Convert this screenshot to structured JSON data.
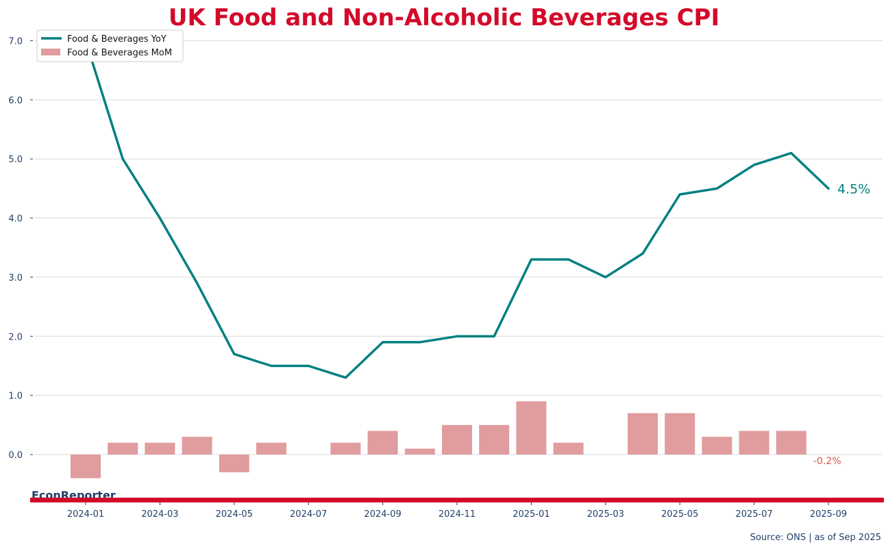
{
  "chart_data": {
    "type": "line",
    "title": "UK Food and Non-Alcoholic Beverages CPI",
    "xlabel": "",
    "ylabel": "",
    "ylim": [
      -0.8,
      7.2
    ],
    "y_ticks": [
      "0.0",
      "1.0",
      "2.0",
      "3.0",
      "4.0",
      "5.0",
      "6.0",
      "7.0"
    ],
    "x_ticks": [
      "2024-01",
      "2024-03",
      "2024-05",
      "2024-07",
      "2024-09",
      "2024-11",
      "2025-01",
      "2025-03",
      "2025-05",
      "2025-07",
      "2025-09"
    ],
    "grid": true,
    "legend_position": "top-left",
    "x": [
      "2024-01",
      "2024-02",
      "2024-03",
      "2024-04",
      "2024-05",
      "2024-06",
      "2024-07",
      "2024-08",
      "2024-09",
      "2024-10",
      "2024-11",
      "2024-12",
      "2025-01",
      "2025-02",
      "2025-03",
      "2025-04",
      "2025-05",
      "2025-06",
      "2025-07",
      "2025-08",
      "2025-09"
    ],
    "series": [
      {
        "name": "Food & Beverages YoY",
        "kind": "line",
        "color": "#008080",
        "values": [
          7.0,
          5.0,
          4.0,
          2.9,
          1.7,
          1.5,
          1.5,
          1.3,
          1.9,
          1.9,
          2.0,
          2.0,
          3.3,
          3.3,
          3.0,
          3.4,
          4.4,
          4.5,
          4.9,
          5.1,
          4.5
        ]
      },
      {
        "name": "Food & Beverages MoM",
        "kind": "bar",
        "color": "#e09c9e",
        "values": [
          -0.4,
          0.2,
          0.2,
          0.3,
          -0.3,
          0.2,
          0.0,
          0.2,
          0.4,
          0.1,
          0.5,
          0.5,
          0.9,
          0.2,
          0.0,
          0.7,
          0.7,
          0.3,
          0.4,
          0.4,
          -0.2
        ]
      }
    ],
    "annotations": [
      {
        "text": "4.5%",
        "series": "Food & Beverages YoY",
        "at": "2025-09",
        "color": "#008080"
      },
      {
        "text": "-0.2%",
        "series": "Food & Beverages MoM",
        "at": "2025-09",
        "color": "#d9534f"
      }
    ],
    "brand": "EconReporter",
    "source": "Source: ONS | as of Sep 2025",
    "accent_color": "#d40a2a"
  }
}
